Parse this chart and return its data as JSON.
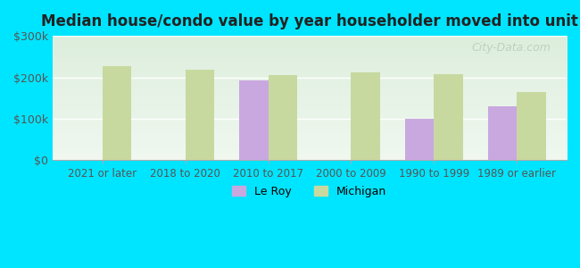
{
  "title": "Median house/condo value by year householder moved into unit",
  "categories": [
    "2021 or later",
    "2018 to 2020",
    "2010 to 2017",
    "2000 to 2009",
    "1990 to 1999",
    "1989 or earlier"
  ],
  "le_roy": [
    null,
    null,
    193000,
    null,
    100000,
    130000
  ],
  "michigan": [
    227000,
    218000,
    205000,
    212000,
    207000,
    165000
  ],
  "le_roy_color": "#c9a8e0",
  "michigan_color": "#c8d9a0",
  "background_outer": "#00e5ff",
  "background_inner_top": "#e8f5e9",
  "background_inner_bottom": "#d4edda",
  "ylim": [
    0,
    300000
  ],
  "yticks": [
    0,
    100000,
    200000,
    300000
  ],
  "ytick_labels": [
    "$0",
    "$100k",
    "$200k",
    "$300k"
  ],
  "bar_width": 0.35,
  "legend_labels": [
    "Le Roy",
    "Michigan"
  ],
  "watermark": "City-Data.com"
}
